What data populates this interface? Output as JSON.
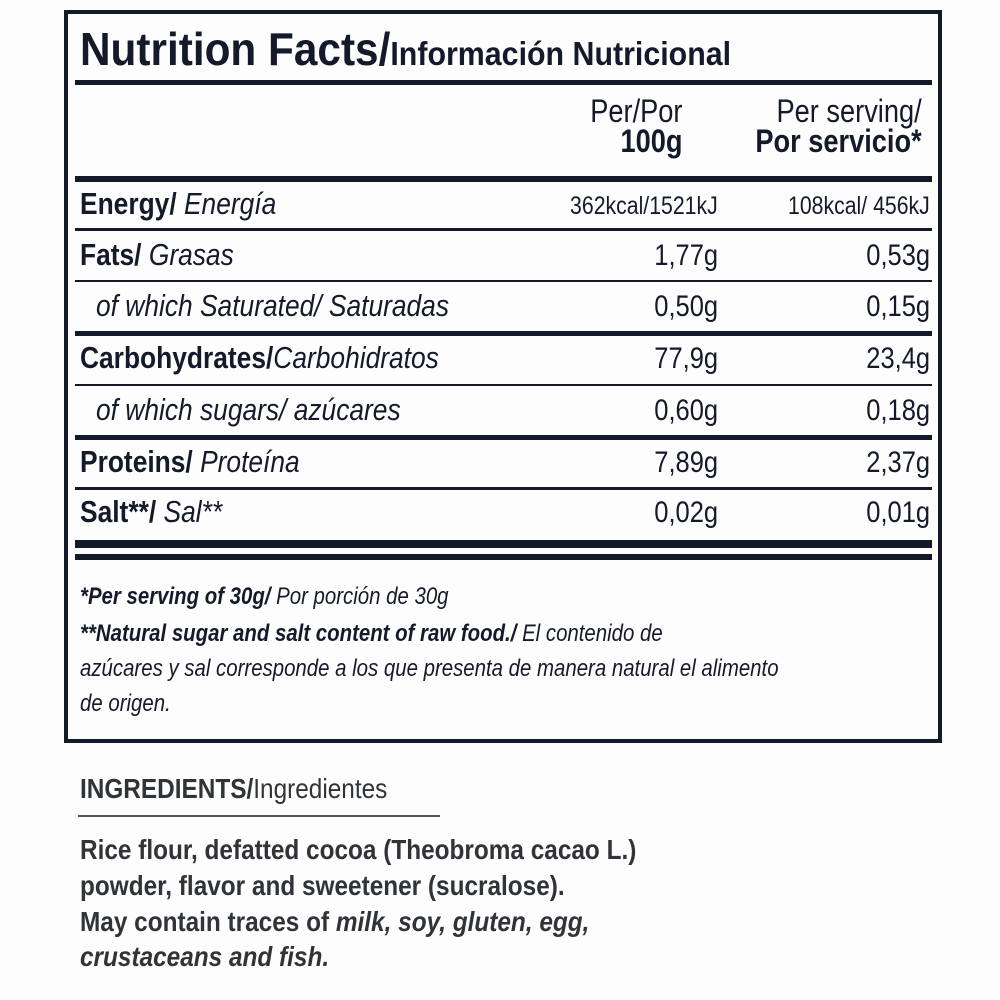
{
  "title": {
    "main": "Nutrition Facts/",
    "sub": "Información Nutricional"
  },
  "columns": {
    "per100_l1": "Per/Por",
    "per100_l2": "100g",
    "serving_l1": "Per serving/",
    "serving_l2": "Por servicio*"
  },
  "rows": [
    {
      "en": "Energy/",
      "es": " Energía",
      "per100": "362kcal/1521kJ",
      "serving": "108kcal/ 456kJ",
      "sub": false
    },
    {
      "en": "Fats/",
      "es": " Grasas",
      "per100": "1,77g",
      "serving": "0,53g",
      "sub": false
    },
    {
      "en": "",
      "es": "of which Saturated/ Saturadas",
      "per100": "0,50g",
      "serving": "0,15g",
      "sub": true
    },
    {
      "en": "Carbohydrates/",
      "es": "Carbohidratos",
      "per100": "77,9g",
      "serving": "23,4g",
      "sub": false
    },
    {
      "en": "",
      "es": "of which sugars/ azúcares",
      "per100": "0,60g",
      "serving": "0,18g",
      "sub": true
    },
    {
      "en": "Proteins/",
      "es": " Proteína",
      "per100": "7,89g",
      "serving": "2,37g",
      "sub": false
    },
    {
      "en": "Salt**/",
      "es": " Sal**",
      "per100": "0,02g",
      "serving": "0,01g",
      "sub": false
    }
  ],
  "footnotes": {
    "f1_bold": "*Per serving of 30g/",
    "f1_rest": " Por porción de 30g",
    "f2_bold": "**Natural sugar and salt content of raw food./",
    "f2_rest": " El contenido de",
    "f2_l2": "azúcares y sal corresponde a los que presenta de manera natural el alimento",
    "f2_l3": "de origen."
  },
  "ingredients": {
    "heading_bold": "INGREDIENTS/",
    "heading_rest": "Ingredientes",
    "l1": "Rice flour, defatted cocoa (Theobroma cacao L.)",
    "l2": "powder, flavor and sweetener (sucralose).",
    "l3_a": "May contain traces of ",
    "l3_b": "milk, soy, gluten, egg,",
    "l4": "crustaceans and fish."
  }
}
